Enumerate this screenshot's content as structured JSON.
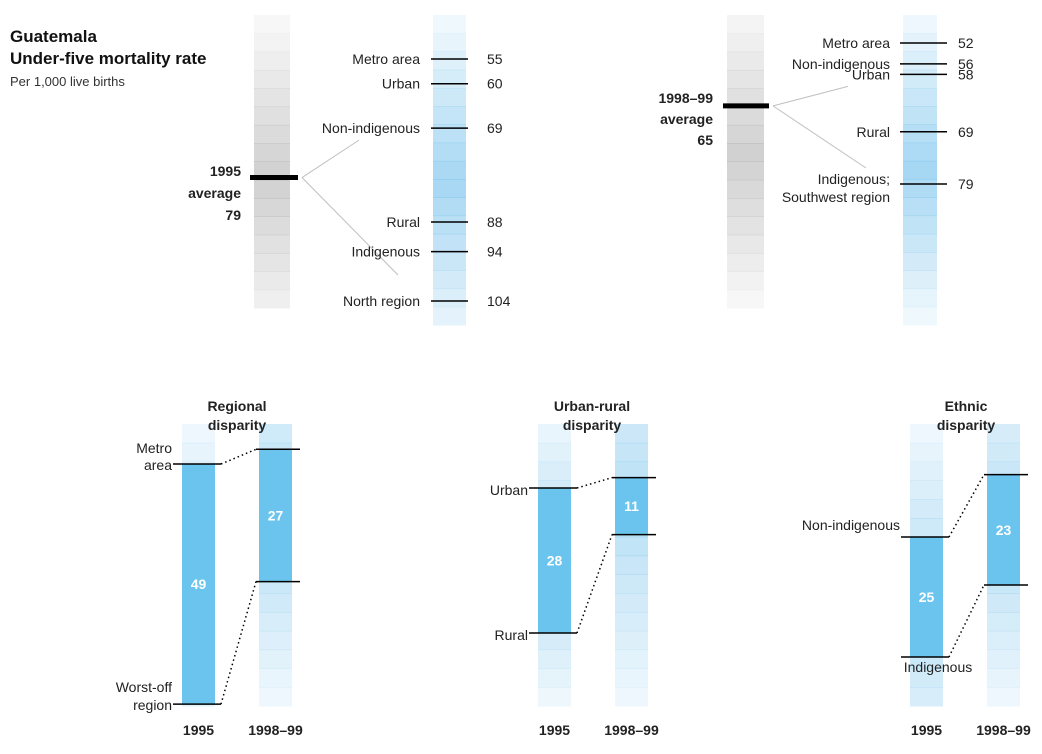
{
  "header": {
    "title_line1": "Guatemala",
    "title_line2": "Under-five mortality rate",
    "subtitle": "Per 1,000 live births"
  },
  "colors": {
    "gray_scale": "#c8c8c8",
    "blue_scale": "#a6d8f0",
    "disparity_bar": "#6ac4ee",
    "marker": "#000000"
  },
  "chart_data": [
    {
      "type": "scale",
      "title": "",
      "year": "1995",
      "average": {
        "label_year": "1995",
        "label_word": "average",
        "value": 79
      },
      "groups": [
        {
          "name": "Metro area",
          "value": 55
        },
        {
          "name": "Urban",
          "value": 60
        },
        {
          "name": "Non-indigenous",
          "value": 69
        },
        {
          "name": "Rural",
          "value": 88
        },
        {
          "name": "Indigenous",
          "value": 94
        },
        {
          "name": "North region",
          "value": 104
        }
      ]
    },
    {
      "type": "scale",
      "title": "",
      "year": "1998–99",
      "average": {
        "label_year": "1998–99",
        "label_word": "average",
        "value": 65
      },
      "groups": [
        {
          "name": "Metro area",
          "value": 52
        },
        {
          "name": "Non-indigenous",
          "value": 56
        },
        {
          "name": "Urban",
          "value": 58
        },
        {
          "name": "Rural",
          "value": 69
        },
        {
          "name": "Indigenous;",
          "name_line2": "Southwest region",
          "value": 79
        }
      ]
    },
    {
      "type": "bar",
      "title_line1": "Regional",
      "title_line2": "disparity",
      "categories": [
        "1995",
        "1998–99"
      ],
      "low_label_line1": "Metro",
      "low_label_line2": "area",
      "high_label_line1": "Worst-off",
      "high_label_line2": "region",
      "series": [
        {
          "period": "1995",
          "low": 55,
          "high": 104,
          "gap": 49
        },
        {
          "period": "1998–99",
          "low": 52,
          "high": 79,
          "gap": 27
        }
      ]
    },
    {
      "type": "bar",
      "title_line1": "Urban-rural",
      "title_line2": "disparity",
      "categories": [
        "1995",
        "1998–99"
      ],
      "low_label_line1": "Urban",
      "low_label_line2": "",
      "high_label_line1": "Rural",
      "high_label_line2": "",
      "series": [
        {
          "period": "1995",
          "low": 60,
          "high": 88,
          "gap": 28
        },
        {
          "period": "1998–99",
          "low": 58,
          "high": 69,
          "gap": 11
        }
      ]
    },
    {
      "type": "bar",
      "title_line1": "Ethnic",
      "title_line2": "disparity",
      "categories": [
        "1995",
        "1998–99"
      ],
      "low_label_line1": "Non-indigenous",
      "low_label_line2": "",
      "high_label_line1": "Indigenous",
      "high_label_line2": "",
      "series": [
        {
          "period": "1995",
          "low": 69,
          "high": 94,
          "gap": 25
        },
        {
          "period": "1998–99",
          "low": 56,
          "high": 79,
          "gap": 23
        }
      ]
    }
  ]
}
